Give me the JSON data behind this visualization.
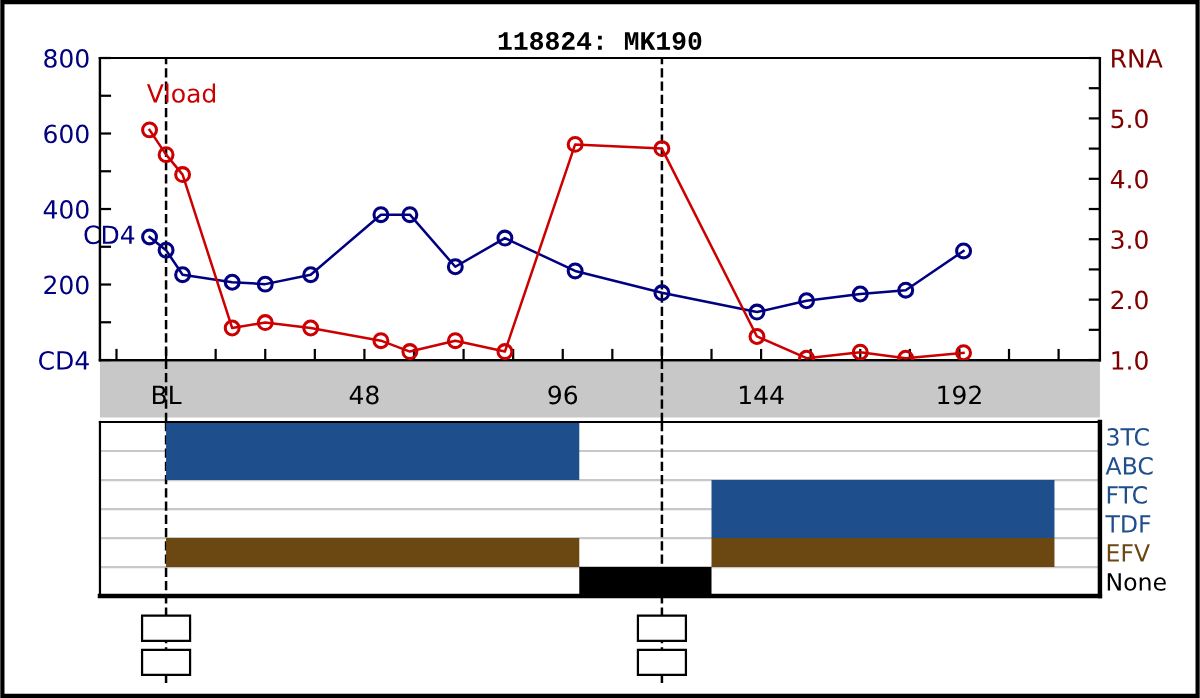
{
  "chart_data": [
    {
      "type": "line",
      "title": "118824: MK190",
      "tick_labels": "xy",
      "xlim": [
        -16,
        226
      ],
      "xticks": [
        {
          "value": -12,
          "label": null
        },
        {
          "value": 0,
          "label": "BL"
        },
        {
          "value": 12,
          "label": null
        },
        {
          "value": 24,
          "label": null
        },
        {
          "value": 36,
          "label": null
        },
        48,
        {
          "value": 60,
          "label": null
        },
        {
          "value": 72,
          "label": null
        },
        {
          "value": 84,
          "label": null
        },
        96,
        {
          "value": 108,
          "label": null
        },
        {
          "value": 120,
          "label": null
        },
        {
          "value": 132,
          "label": null
        },
        144,
        {
          "value": 156,
          "label": null
        },
        {
          "value": 168,
          "label": null
        },
        {
          "value": 180,
          "label": null
        },
        192,
        {
          "value": 204,
          "label": null
        },
        {
          "value": 216,
          "label": null
        }
      ],
      "ylim": [
        0,
        800
      ],
      "yticks": [
        {
          "value": 0,
          "label": "CD4"
        },
        {
          "value": 100,
          "label": null
        },
        200,
        {
          "value": 300,
          "label": null
        },
        400,
        {
          "value": 500,
          "label": null
        },
        600,
        {
          "value": 700,
          "label": null
        },
        800
      ],
      "y2lim": [
        1,
        6
      ],
      "y2ticks": [
        {
          "value": 1,
          "label": "1.0"
        },
        {
          "value": 1.5,
          "label": null
        },
        {
          "value": 2,
          "label": "2.0"
        },
        {
          "value": 2.5,
          "label": null
        },
        {
          "value": 3,
          "label": "3.0"
        },
        {
          "value": 3.5,
          "label": null
        },
        {
          "value": 4,
          "label": "4.0"
        },
        {
          "value": 4.5,
          "label": null
        },
        {
          "value": 5,
          "label": "5.0"
        },
        {
          "value": 5.5,
          "label": null
        },
        {
          "value": 6,
          "label": "RNA"
        }
      ],
      "marker": "circle",
      "grid": false,
      "series": [
        {
          "name": "CD4",
          "color": "#000080",
          "x": [
            -4,
            0,
            4,
            16,
            24,
            35,
            52,
            59,
            70,
            82,
            99,
            120,
            143,
            155,
            168,
            179,
            193
          ],
          "values": [
            326,
            291,
            226,
            206,
            201,
            226,
            385,
            385,
            247,
            323,
            236,
            178,
            127,
            157,
            175,
            185,
            289
          ]
        },
        {
          "name": "Vload",
          "color": "#cc0000",
          "axis": "y2",
          "x": [
            -4,
            0,
            4,
            16,
            24,
            35,
            52,
            59,
            70,
            82,
            99,
            120,
            143,
            155,
            168,
            179,
            193
          ],
          "values": [
            4.81,
            4.4,
            4.07,
            1.53,
            1.62,
            1.53,
            1.32,
            1.14,
            1.32,
            1.14,
            4.57,
            4.5,
            1.39,
            1.03,
            1.13,
            1.03,
            1.12
          ]
        }
      ],
      "ref_lines": [
        {
          "axis": "x",
          "value": 0,
          "color": "#000000",
          "line_style": "dashed"
        },
        {
          "axis": "x",
          "value": 120,
          "color": "#000000",
          "line_style": "dashed"
        }
      ]
    },
    {
      "type": "bar",
      "orientation": "horizontal",
      "tick_labels": "y",
      "xlim": [
        -16,
        226
      ],
      "categories": [
        "3TC",
        "ABC",
        "FTC",
        "TDF",
        "EFV",
        "None"
      ],
      "grid": "y",
      "series": [
        {
          "colors": [
            "#1f4e8c",
            "#1f4e8c",
            "#1f4e8c",
            "#1f4e8c",
            "#6b4812",
            "#000000"
          ],
          "base": [
            0,
            0,
            132,
            132,
            0,
            100
          ],
          "values": [
            100,
            100,
            83,
            83,
            100,
            32
          ]
        },
        {
          "colors": [
            null,
            null,
            null,
            null,
            "#6b4812",
            null
          ],
          "base": [
            null,
            null,
            null,
            null,
            132,
            null
          ],
          "values": [
            null,
            null,
            null,
            null,
            83,
            null
          ]
        }
      ],
      "ref_lines": [
        {
          "axis": "x",
          "value": 0,
          "color": "#000000",
          "line_style": "dashed"
        },
        {
          "axis": "x",
          "value": 120,
          "color": "#000000",
          "line_style": "dashed"
        }
      ]
    }
  ]
}
